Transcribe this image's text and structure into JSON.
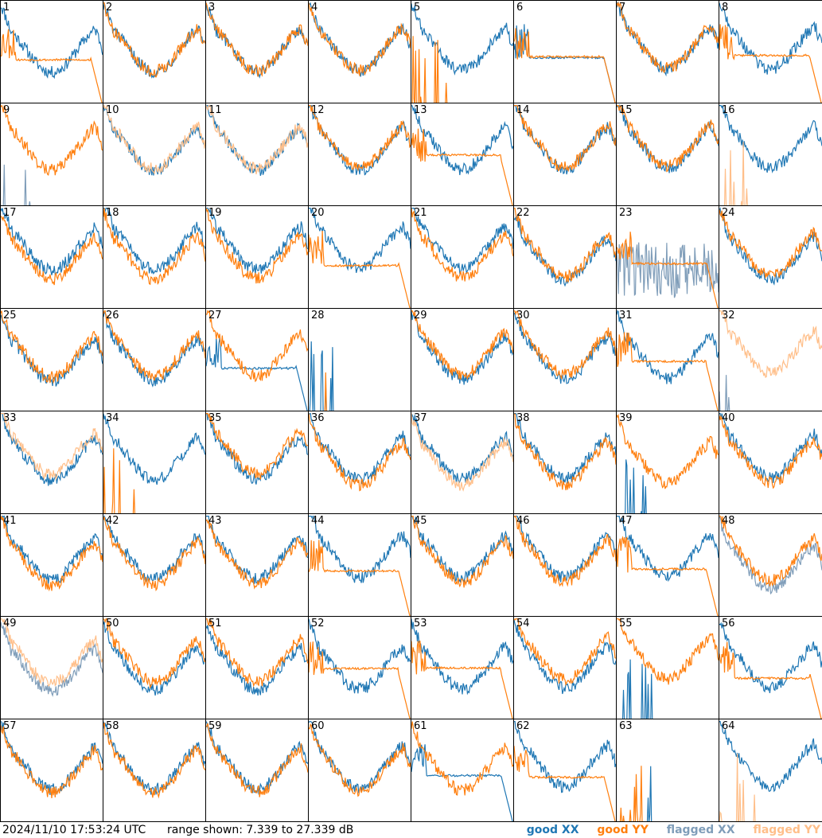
{
  "footer": {
    "timestamp": "2024/11/10 17:53:24 UTC",
    "range": "range shown: 7.339 to 27.339 dB"
  },
  "legend": [
    {
      "label": "good XX",
      "color": "#1f77b4"
    },
    {
      "label": "good YY",
      "color": "#ff7f0e"
    },
    {
      "label": "flagged XX",
      "color": "#7f9db9"
    },
    {
      "label": "flagged YY",
      "color": "#ffbf8a"
    }
  ],
  "chart_data": {
    "type": "line",
    "ylim": [
      7.339,
      27.339
    ],
    "panels": [
      {
        "id": "1",
        "xx": "good",
        "yy": "good",
        "xx_shape": "bowl",
        "yy_shape": "drop"
      },
      {
        "id": "2",
        "xx": "good",
        "yy": "good",
        "xx_shape": "bowl",
        "yy_shape": "bowl"
      },
      {
        "id": "3",
        "xx": "good",
        "yy": "good",
        "xx_shape": "bowl",
        "yy_shape": "bowl"
      },
      {
        "id": "4",
        "xx": "good",
        "yy": "good",
        "xx_shape": "bowl",
        "yy_shape": "bowl"
      },
      {
        "id": "5",
        "xx": "good",
        "yy": "good",
        "xx_shape": "bowl",
        "yy_shape": "dead"
      },
      {
        "id": "6",
        "xx": "good",
        "yy": "good",
        "xx_shape": "drop",
        "yy_shape": "drop"
      },
      {
        "id": "7",
        "xx": "good",
        "yy": "good",
        "xx_shape": "bowl",
        "yy_shape": "bowl"
      },
      {
        "id": "8",
        "xx": "good",
        "yy": "good",
        "xx_shape": "bowl",
        "yy_shape": "drop"
      },
      {
        "id": "9",
        "xx": "flagged",
        "yy": "good",
        "xx_shape": "dead",
        "yy_shape": "bowl"
      },
      {
        "id": "10",
        "xx": "good",
        "yy": "flagged",
        "xx_shape": "bowl",
        "yy_shape": "bowl"
      },
      {
        "id": "11",
        "xx": "good",
        "yy": "flagged",
        "xx_shape": "bowl",
        "yy_shape": "bowl"
      },
      {
        "id": "12",
        "xx": "good",
        "yy": "good",
        "xx_shape": "bowl",
        "yy_shape": "bowl"
      },
      {
        "id": "13",
        "xx": "good",
        "yy": "good",
        "xx_shape": "bowl",
        "yy_shape": "drop"
      },
      {
        "id": "14",
        "xx": "good",
        "yy": "good",
        "xx_shape": "bowl",
        "yy_shape": "bowl"
      },
      {
        "id": "15",
        "xx": "good",
        "yy": "good",
        "xx_shape": "bowl",
        "yy_shape": "bowl"
      },
      {
        "id": "16",
        "xx": "good",
        "yy": "flagged",
        "xx_shape": "bowl",
        "yy_shape": "dead"
      },
      {
        "id": "17",
        "xx": "good",
        "yy": "good",
        "xx_shape": "bowl",
        "yy_shape": "bowl"
      },
      {
        "id": "18",
        "xx": "good",
        "yy": "good",
        "xx_shape": "bowl",
        "yy_shape": "bowl"
      },
      {
        "id": "19",
        "xx": "good",
        "yy": "good",
        "xx_shape": "bowl",
        "yy_shape": "bowl"
      },
      {
        "id": "20",
        "xx": "good",
        "yy": "good",
        "xx_shape": "bowl",
        "yy_shape": "drop"
      },
      {
        "id": "21",
        "xx": "good",
        "yy": "good",
        "xx_shape": "bowl",
        "yy_shape": "bowl"
      },
      {
        "id": "22",
        "xx": "good",
        "yy": "good",
        "xx_shape": "bowl",
        "yy_shape": "bowl"
      },
      {
        "id": "23",
        "xx": "flagged",
        "yy": "good",
        "xx_shape": "noise",
        "yy_shape": "drop"
      },
      {
        "id": "24",
        "xx": "good",
        "yy": "good",
        "xx_shape": "bowl",
        "yy_shape": "bowl"
      },
      {
        "id": "25",
        "xx": "good",
        "yy": "good",
        "xx_shape": "bowl",
        "yy_shape": "bowl"
      },
      {
        "id": "26",
        "xx": "good",
        "yy": "good",
        "xx_shape": "bowl",
        "yy_shape": "bowl"
      },
      {
        "id": "27",
        "xx": "good",
        "yy": "good",
        "xx_shape": "drop",
        "yy_shape": "bowl"
      },
      {
        "id": "28",
        "xx": "good",
        "yy": "good",
        "xx_shape": "dead",
        "yy_shape": "dead"
      },
      {
        "id": "29",
        "xx": "good",
        "yy": "good",
        "xx_shape": "bowl",
        "yy_shape": "bowl"
      },
      {
        "id": "30",
        "xx": "good",
        "yy": "good",
        "xx_shape": "bowl",
        "yy_shape": "bowl"
      },
      {
        "id": "31",
        "xx": "good",
        "yy": "good",
        "xx_shape": "bowl",
        "yy_shape": "drop"
      },
      {
        "id": "32",
        "xx": "flagged",
        "yy": "flagged",
        "xx_shape": "dead",
        "yy_shape": "bowl"
      },
      {
        "id": "33",
        "xx": "good",
        "yy": "flagged",
        "xx_shape": "bowl",
        "yy_shape": "bowl"
      },
      {
        "id": "34",
        "xx": "good",
        "yy": "good",
        "xx_shape": "bowl",
        "yy_shape": "dead"
      },
      {
        "id": "35",
        "xx": "good",
        "yy": "good",
        "xx_shape": "bowl",
        "yy_shape": "bowl"
      },
      {
        "id": "36",
        "xx": "good",
        "yy": "good",
        "xx_shape": "bowl",
        "yy_shape": "bowl"
      },
      {
        "id": "37",
        "xx": "good",
        "yy": "flagged",
        "xx_shape": "bowl",
        "yy_shape": "bowl"
      },
      {
        "id": "38",
        "xx": "good",
        "yy": "good",
        "xx_shape": "bowl",
        "yy_shape": "bowl"
      },
      {
        "id": "39",
        "xx": "good",
        "yy": "good",
        "xx_shape": "dead",
        "yy_shape": "bowl"
      },
      {
        "id": "40",
        "xx": "good",
        "yy": "good",
        "xx_shape": "bowl",
        "yy_shape": "bowl"
      },
      {
        "id": "41",
        "xx": "good",
        "yy": "good",
        "xx_shape": "bowl",
        "yy_shape": "bowl"
      },
      {
        "id": "42",
        "xx": "good",
        "yy": "good",
        "xx_shape": "bowl",
        "yy_shape": "bowl"
      },
      {
        "id": "43",
        "xx": "good",
        "yy": "good",
        "xx_shape": "bowl",
        "yy_shape": "bowl"
      },
      {
        "id": "44",
        "xx": "good",
        "yy": "good",
        "xx_shape": "bowl",
        "yy_shape": "drop"
      },
      {
        "id": "45",
        "xx": "good",
        "yy": "good",
        "xx_shape": "bowl",
        "yy_shape": "bowl"
      },
      {
        "id": "46",
        "xx": "good",
        "yy": "good",
        "xx_shape": "bowl",
        "yy_shape": "bowl"
      },
      {
        "id": "47",
        "xx": "good",
        "yy": "good",
        "xx_shape": "bowl",
        "yy_shape": "drop"
      },
      {
        "id": "48",
        "xx": "flagged",
        "yy": "good",
        "xx_shape": "bowl",
        "yy_shape": "bowl"
      },
      {
        "id": "49",
        "xx": "flagged",
        "yy": "flagged",
        "xx_shape": "bowl",
        "yy_shape": "bowl"
      },
      {
        "id": "50",
        "xx": "good",
        "yy": "good",
        "xx_shape": "bowl",
        "yy_shape": "bowl"
      },
      {
        "id": "51",
        "xx": "good",
        "yy": "good",
        "xx_shape": "bowl",
        "yy_shape": "bowl"
      },
      {
        "id": "52",
        "xx": "good",
        "yy": "good",
        "xx_shape": "bowl",
        "yy_shape": "drop"
      },
      {
        "id": "53",
        "xx": "good",
        "yy": "good",
        "xx_shape": "bowl",
        "yy_shape": "drop"
      },
      {
        "id": "54",
        "xx": "good",
        "yy": "good",
        "xx_shape": "bowl",
        "yy_shape": "bowl"
      },
      {
        "id": "55",
        "xx": "good",
        "yy": "good",
        "xx_shape": "dead",
        "yy_shape": "bowl"
      },
      {
        "id": "56",
        "xx": "good",
        "yy": "good",
        "xx_shape": "bowl",
        "yy_shape": "drop"
      },
      {
        "id": "57",
        "xx": "good",
        "yy": "good",
        "xx_shape": "bowl",
        "yy_shape": "bowl"
      },
      {
        "id": "58",
        "xx": "good",
        "yy": "good",
        "xx_shape": "bowl",
        "yy_shape": "bowl"
      },
      {
        "id": "59",
        "xx": "good",
        "yy": "good",
        "xx_shape": "bowl",
        "yy_shape": "bowl"
      },
      {
        "id": "60",
        "xx": "good",
        "yy": "good",
        "xx_shape": "bowl",
        "yy_shape": "bowl"
      },
      {
        "id": "61",
        "xx": "good",
        "yy": "good",
        "xx_shape": "drop",
        "yy_shape": "bowl"
      },
      {
        "id": "62",
        "xx": "good",
        "yy": "good",
        "xx_shape": "bowl",
        "yy_shape": "drop"
      },
      {
        "id": "63",
        "xx": "good",
        "yy": "good",
        "xx_shape": "dead",
        "yy_shape": "dead"
      },
      {
        "id": "64",
        "xx": "good",
        "yy": "flagged",
        "xx_shape": "bowl",
        "yy_shape": "dead"
      }
    ]
  }
}
